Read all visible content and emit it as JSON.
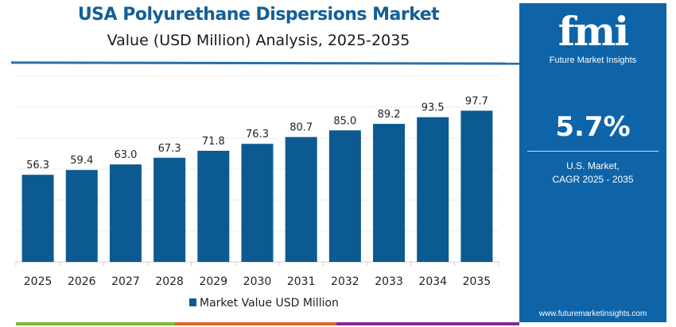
{
  "title": "USA Polyurethane Dispersions Market",
  "subtitle": "Value (USD Million) Analysis, 2025-2035",
  "chart_data": {
    "type": "bar",
    "categories": [
      "2025",
      "2026",
      "2027",
      "2028",
      "2029",
      "2030",
      "2031",
      "2032",
      "2033",
      "2034",
      "2035"
    ],
    "series": [
      {
        "name": "Market Value USD Million",
        "values": [
          56.3,
          59.4,
          63.0,
          67.3,
          71.8,
          76.3,
          80.7,
          85.0,
          89.2,
          93.5,
          97.7
        ],
        "labels": [
          "56.3",
          "59.4",
          "63.0",
          "67.3",
          "71.8",
          "76.3",
          "80.7",
          "85.0",
          "89.2",
          "93.5",
          "97.7"
        ]
      }
    ],
    "ylim": [
      0,
      120
    ],
    "grid": true,
    "legend": "bottom",
    "color": "#0b5a90"
  },
  "panel": {
    "logo": "fmi",
    "logo_sub": "Future Market Insights",
    "cagr": "5.7%",
    "cagr_label_1": "U.S. Market,",
    "cagr_label_2": "CAGR 2025 - 2035",
    "url": "www.futuremarketinsights.com",
    "bg": "#0f64a8"
  },
  "strip_colors": [
    "#7bb93b",
    "#e2662a",
    "#7b2d8e"
  ]
}
